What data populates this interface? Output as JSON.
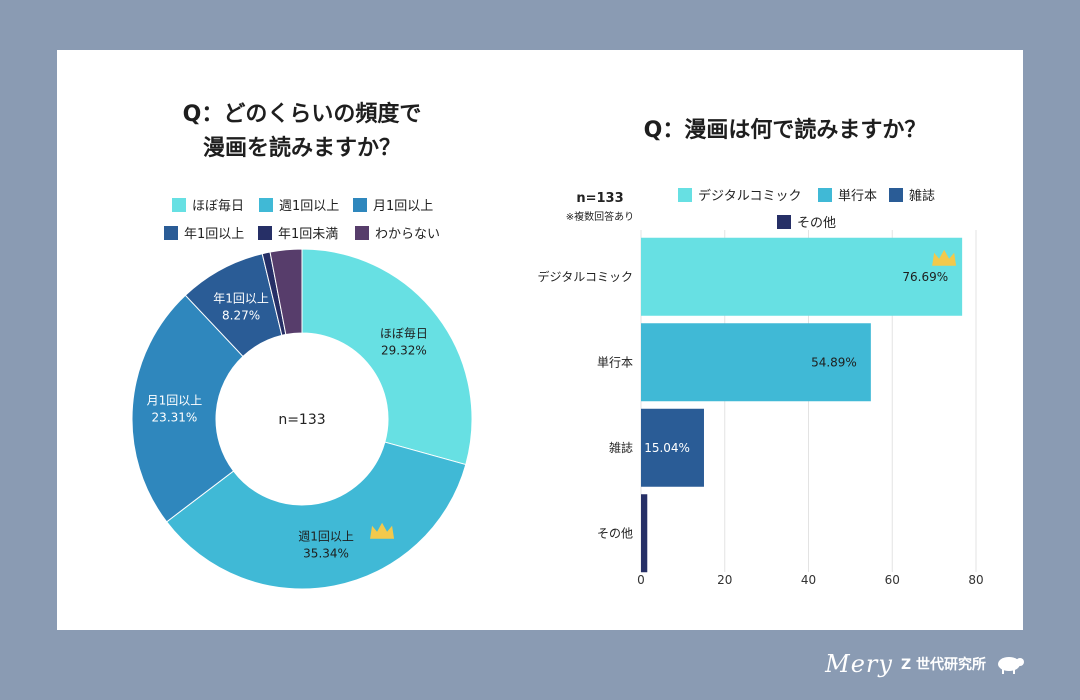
{
  "left_chart": {
    "title": "Q：どのくらいの頻度で\n漫画を読みますか？",
    "center_label": "n=133",
    "legend": [
      "ほぼ毎日",
      "週1回以上",
      "月1回以上",
      "年1回以上",
      "年1回未満",
      "わからない"
    ]
  },
  "right_chart": {
    "title": "Q：漫画は何で読みますか？",
    "n_label": "n=133",
    "note": "※複数回答あり",
    "legend": [
      "デジタルコミック",
      "単行本",
      "雑誌",
      "その他"
    ]
  },
  "footer": {
    "logo": "Mery",
    "text": "Z 世代研究所",
    "logo_icon": "sheep-icon"
  },
  "colors": {
    "background": "#8a9bb3",
    "card": "#ffffff",
    "c1": "#67e0e3",
    "c2": "#40b9d6",
    "c3": "#2f87bd",
    "c4": "#2a5c96",
    "c5": "#262f66",
    "c6": "#573d6b",
    "crown": "#f2c94c"
  },
  "chart_data": [
    {
      "type": "pie",
      "variant": "donut",
      "title": "Q：どのくらいの頻度で漫画を読みますか？",
      "n": 133,
      "categories": [
        "ほぼ毎日",
        "週1回以上",
        "月1回以上",
        "年1回以上",
        "年1回未満",
        "わからない"
      ],
      "values": [
        29.32,
        35.34,
        23.31,
        8.27,
        0.75,
        3.01
      ],
      "labels_shown": [
        {
          "category": "ほぼ毎日",
          "text": "29.32%"
        },
        {
          "category": "週1回以上",
          "text": "35.34%"
        },
        {
          "category": "月1回以上",
          "text": "23.31%"
        },
        {
          "category": "年1回以上",
          "text": "8.27%"
        }
      ],
      "highlight": "週1回以上",
      "legend_position": "top"
    },
    {
      "type": "bar",
      "orientation": "horizontal",
      "title": "Q：漫画は何で読みますか？",
      "n": 133,
      "categories": [
        "デジタルコミック",
        "単行本",
        "雑誌",
        "その他"
      ],
      "values": [
        76.69,
        54.89,
        15.04,
        1.5
      ],
      "value_labels": [
        "76.69%",
        "54.89%",
        "15.04%",
        ""
      ],
      "xlim": [
        0,
        80
      ],
      "xticks": [
        0,
        20,
        40,
        60,
        80
      ],
      "grid": true,
      "highlight": "デジタルコミック",
      "legend_position": "top"
    }
  ]
}
